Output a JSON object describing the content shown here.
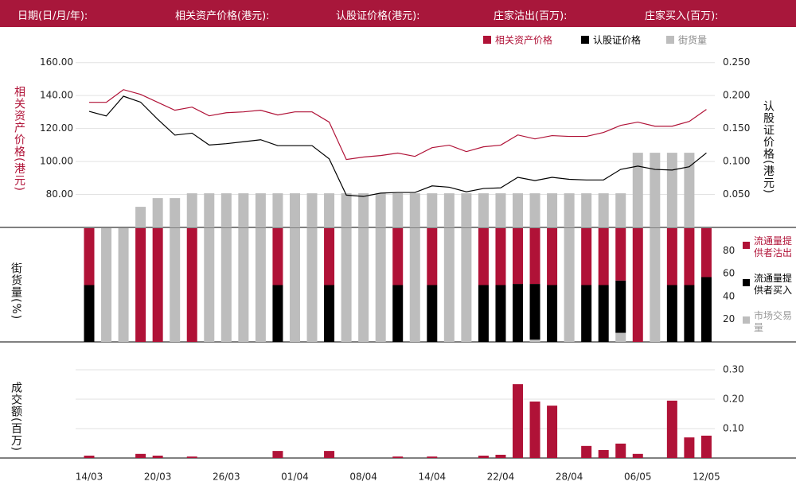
{
  "header": {
    "fields": [
      "日期(日/月/年):",
      "相关资产价格(港元):",
      "认股证价格(港元):",
      "庄家沽出(百万):",
      "庄家买入(百万):"
    ]
  },
  "chart_data": [
    {
      "type": "line",
      "ylabel": "相关资产价格(港元)",
      "y2label": "认股证价格(港元)",
      "ylim": [
        60,
        170
      ],
      "yticks": [
        {
          "value": 80,
          "label": "80.00"
        },
        {
          "value": 100,
          "label": "100.00"
        },
        {
          "value": 120,
          "label": "120.00"
        },
        {
          "value": 140,
          "label": "140.00"
        },
        {
          "value": 160,
          "label": "160.00"
        }
      ],
      "y2lim": [
        0,
        0.275
      ],
      "y2ticks": [
        {
          "value": 0.05,
          "label": "0.050"
        },
        {
          "value": 0.1,
          "label": "0.100"
        },
        {
          "value": 0.15,
          "label": "0.150"
        },
        {
          "value": 0.2,
          "label": "0.200"
        },
        {
          "value": 0.25,
          "label": "0.250"
        }
      ],
      "grid": true,
      "legend": "top-right",
      "series": [
        {
          "name": "相关资产价格",
          "color": "#b01237",
          "values": [
            135.9,
            135.9,
            143.6,
            140.7,
            135.9,
            131.1,
            133.0,
            127.7,
            129.6,
            130.1,
            131.1,
            128.2,
            130.1,
            130.1,
            123.9,
            101.2,
            102.7,
            103.6,
            105.1,
            103.1,
            108.4,
            109.9,
            106.0,
            108.9,
            109.9,
            116.1,
            113.7,
            115.7,
            115.2,
            115.2,
            117.6,
            121.9,
            123.9,
            121.4,
            121.4,
            124.3,
            131.6
          ]
        },
        {
          "name": "认股证价格",
          "color": "#000000",
          "axis": "y2",
          "values": [
            0.176,
            0.169,
            0.199,
            0.19,
            0.164,
            0.14,
            0.143,
            0.125,
            0.127,
            0.13,
            0.133,
            0.124,
            0.124,
            0.124,
            0.104,
            0.049,
            0.047,
            0.052,
            0.053,
            0.053,
            0.063,
            0.061,
            0.054,
            0.059,
            0.06,
            0.076,
            0.071,
            0.076,
            0.073,
            0.072,
            0.072,
            0.088,
            0.093,
            0.088,
            0.087,
            0.092,
            0.113
          ]
        },
        {
          "name": "街货量",
          "type": "bar",
          "color": "#bdbdbd",
          "values": [
            null,
            null,
            null,
            72.5,
            77.8,
            77.8,
            80.7,
            80.7,
            80.7,
            80.7,
            80.7,
            80.7,
            80.7,
            80.7,
            80.7,
            80.7,
            80.7,
            80.7,
            80.7,
            80.7,
            80.7,
            80.7,
            80.7,
            80.7,
            80.7,
            80.7,
            80.7,
            80.7,
            80.7,
            80.7,
            80.7,
            80.7,
            105.3,
            105.3,
            105.3,
            105.3,
            null
          ]
        }
      ]
    },
    {
      "type": "stacked_bar",
      "ylabel": "街货量(%)",
      "ylim": [
        0,
        100
      ],
      "yticks": [
        20,
        40,
        60,
        80
      ],
      "series": [
        {
          "name": "流通量提供者沽出",
          "color": "#b01237",
          "values": [
            50,
            null,
            null,
            100,
            100,
            null,
            100,
            null,
            null,
            null,
            null,
            50,
            null,
            null,
            50,
            null,
            null,
            null,
            50,
            null,
            50,
            null,
            null,
            50,
            50,
            49,
            49,
            50,
            null,
            50,
            50,
            46,
            100,
            null,
            50,
            50,
            43
          ]
        },
        {
          "name": "流通量提供者买入",
          "color": "#000000",
          "values": [
            50,
            null,
            null,
            null,
            null,
            null,
            null,
            null,
            null,
            null,
            null,
            50,
            null,
            null,
            50,
            null,
            null,
            null,
            50,
            null,
            50,
            null,
            null,
            50,
            50,
            51,
            49,
            50,
            null,
            50,
            50,
            46,
            null,
            null,
            50,
            50,
            57
          ]
        },
        {
          "name": "市场交易量",
          "color": "#bdbdbd",
          "values": [
            null,
            100,
            100,
            null,
            null,
            100,
            null,
            100,
            100,
            100,
            100,
            null,
            100,
            100,
            null,
            100,
            100,
            100,
            null,
            100,
            null,
            100,
            100,
            null,
            null,
            null,
            2,
            null,
            100,
            null,
            null,
            8,
            null,
            100,
            null,
            null,
            null
          ]
        }
      ]
    },
    {
      "type": "bar",
      "ylabel": "成交额(百万)",
      "ylim": [
        0,
        0.3
      ],
      "yticks": [
        {
          "value": 0.1,
          "label": "0.10"
        },
        {
          "value": 0.2,
          "label": "0.20"
        },
        {
          "value": 0.3,
          "label": "0.30"
        }
      ],
      "grid": true,
      "color": "#b01237",
      "categories": [
        "14/03",
        null,
        null,
        null,
        "20/03",
        null,
        null,
        null,
        "26/03",
        null,
        null,
        null,
        "01/04",
        null,
        null,
        null,
        "08/04",
        null,
        null,
        null,
        "14/04",
        null,
        null,
        null,
        "22/04",
        null,
        null,
        null,
        "28/04",
        null,
        null,
        null,
        "06/05",
        null,
        null,
        null,
        "12/05"
      ],
      "values": [
        0.008,
        null,
        null,
        0.014,
        0.008,
        null,
        0.005,
        null,
        null,
        null,
        null,
        0.024,
        null,
        null,
        0.024,
        null,
        null,
        null,
        0.005,
        null,
        0.005,
        null,
        null,
        0.008,
        0.011,
        0.251,
        0.192,
        0.178,
        null,
        0.041,
        0.027,
        0.049,
        0.014,
        null,
        0.195,
        0.07,
        0.076
      ]
    }
  ]
}
